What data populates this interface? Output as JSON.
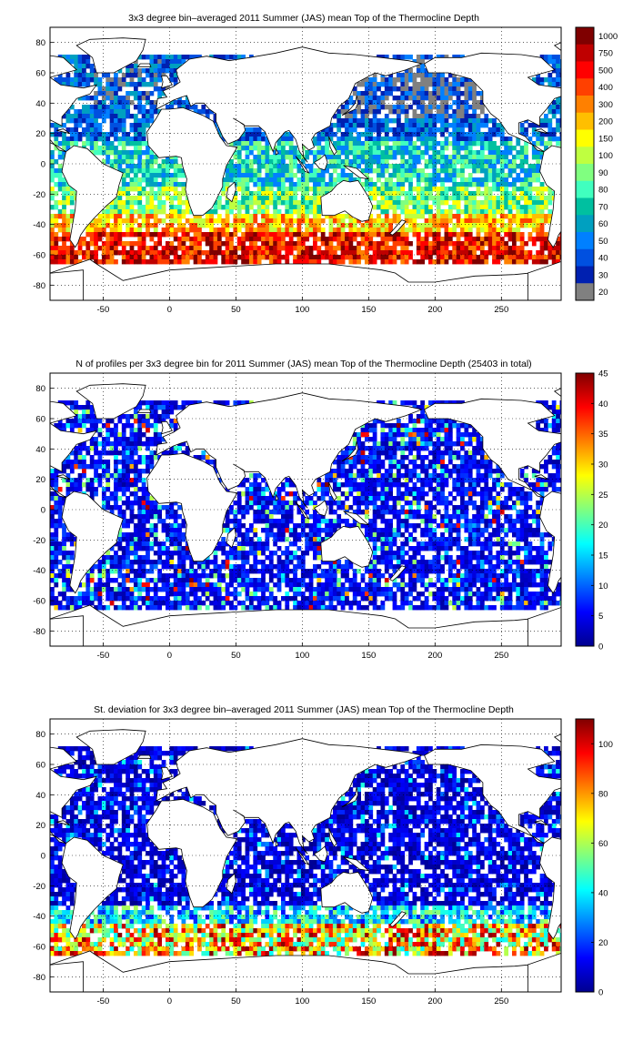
{
  "axes": {
    "lon_ticks": [
      -50,
      0,
      50,
      100,
      150,
      200,
      250
    ],
    "lat_ticks": [
      80,
      60,
      40,
      20,
      0,
      -20,
      -40,
      -60,
      -80
    ],
    "lon_range": [
      -90,
      295
    ],
    "lat_range": [
      -90,
      90
    ],
    "grid": "dotted"
  },
  "panels": [
    {
      "title": "3x3 degree bin–averaged 2011 Summer (JAS) mean Top of the Thermocline Depth",
      "colorbar": {
        "type": "discrete",
        "labels": [
          "1000",
          "750",
          "500",
          "400",
          "300",
          "200",
          "150",
          "100",
          "90",
          "80",
          "70",
          "60",
          "50",
          "40",
          "30",
          "20"
        ],
        "colors": [
          "#7f0000",
          "#bf0000",
          "#ff0000",
          "#ff4000",
          "#ff8000",
          "#ffbf00",
          "#ffff00",
          "#bfff40",
          "#80ff80",
          "#40ffbf",
          "#00c0a0",
          "#00a0c0",
          "#0080ff",
          "#0050e0",
          "#0020b0",
          "#808080"
        ]
      }
    },
    {
      "title": "N of profiles per 3x3 degree bin for 2011 Summer (JAS) mean Top of the Thermocline Depth  (25403 in total)",
      "colorbar": {
        "type": "continuous",
        "min": 0,
        "max": 45,
        "ticks": [
          "45",
          "40",
          "35",
          "30",
          "25",
          "20",
          "15",
          "10",
          "5",
          "0"
        ]
      }
    },
    {
      "title": "St. deviation for 3x3 degree bin–averaged 2011 Summer (JAS) mean Top of the Thermocline Depth",
      "colorbar": {
        "type": "continuous",
        "min": 0,
        "max": 110,
        "ticks": [
          "100",
          "80",
          "60",
          "40",
          "20",
          "0"
        ]
      }
    }
  ],
  "colors": {
    "frame": "#000000",
    "land_outline": "#000000",
    "grid": "#000000",
    "background": "#ffffff"
  }
}
